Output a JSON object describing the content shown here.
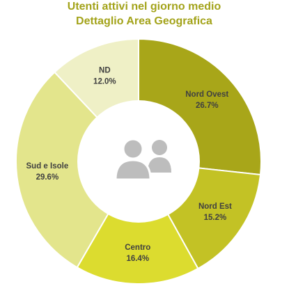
{
  "chart_data": {
    "type": "donut",
    "title": "Utenti attivi nel giorno medio",
    "subtitle": "Dettaglio Area Geografica",
    "categories": [
      "Nord Ovest",
      "Nord Est",
      "Centro",
      "Sud e Isole",
      "ND"
    ],
    "values": [
      26.7,
      15.2,
      16.4,
      29.6,
      12.0
    ],
    "value_labels": [
      "26.7%",
      "15.2%",
      "16.4%",
      "29.6%",
      "12.0%"
    ],
    "colors": [
      "#a8a619",
      "#c3c225",
      "#dcdc2f",
      "#e3e58c",
      "#eff0c6"
    ]
  }
}
